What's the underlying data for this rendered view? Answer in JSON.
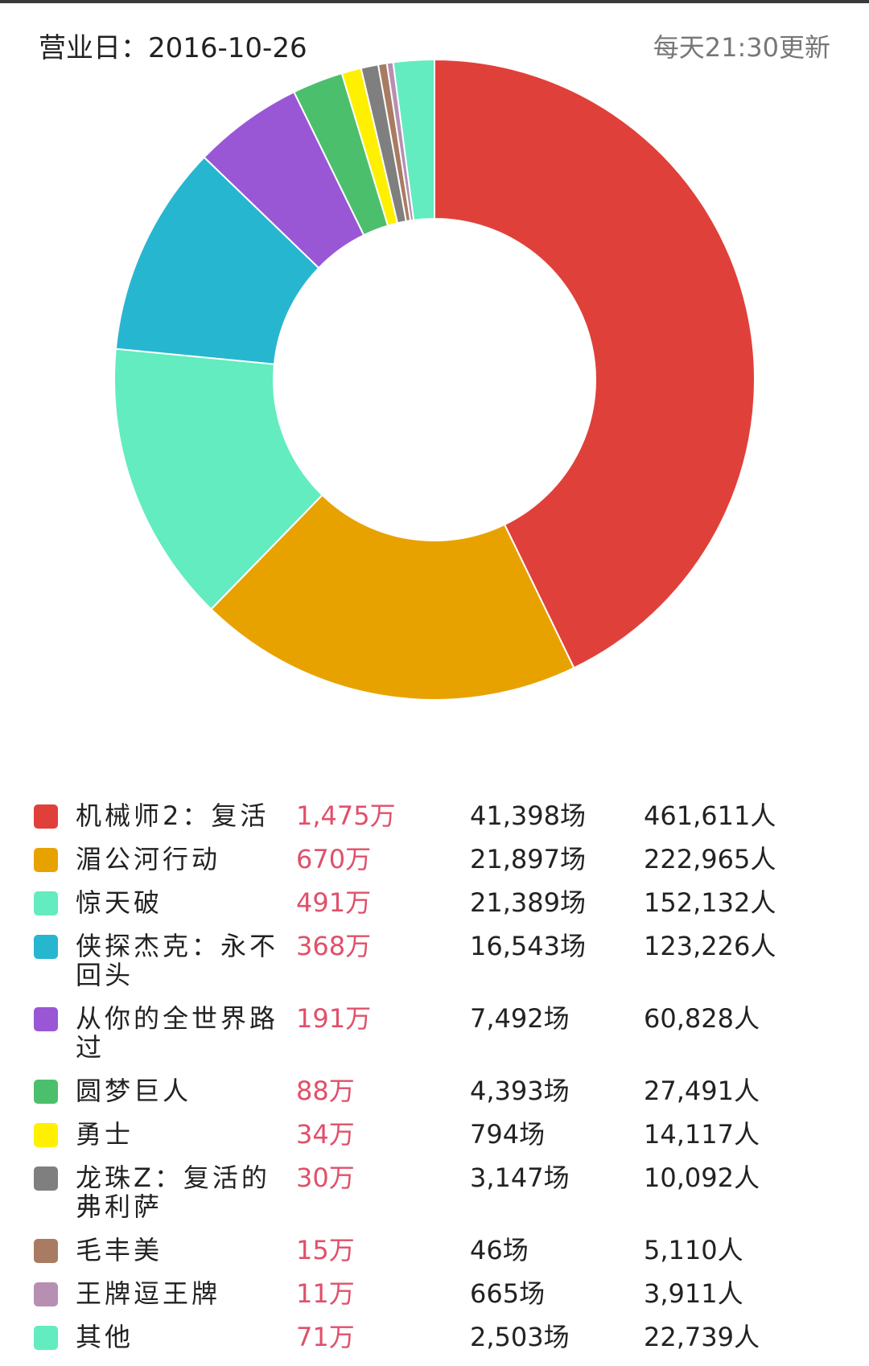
{
  "header": {
    "date_text": "营业日：2016-10-26",
    "update_text": "每天21:30更新"
  },
  "chart_data": {
    "type": "pie",
    "style": "donut",
    "unit": "万",
    "categories": [
      "机械师2：复活",
      "湄公河行动",
      "惊天破",
      "侠探杰克：永不回头",
      "从你的全世界路过",
      "圆梦巨人",
      "勇士",
      "龙珠Z：复活的弗利萨",
      "毛丰美",
      "王牌逗王牌",
      "其他"
    ],
    "values": [
      1475,
      670,
      491,
      368,
      191,
      88,
      34,
      30,
      15,
      11,
      71
    ],
    "colors": [
      "#e0403a",
      "#e8a200",
      "#62ecc0",
      "#27b6d0",
      "#9957d6",
      "#4cbf6c",
      "#fff000",
      "#7f7f7f",
      "#a87b62",
      "#b68fb2",
      "#62ecc0"
    ],
    "legend_position": "bottom"
  },
  "legend": [
    {
      "name": "机械师2：复活",
      "box": "1,475",
      "unit": "万",
      "screens": "41,398场",
      "people": "461,611人"
    },
    {
      "name": "湄公河行动",
      "box": "670",
      "unit": "万",
      "screens": "21,897场",
      "people": "222,965人"
    },
    {
      "name": "惊天破",
      "box": "491",
      "unit": "万",
      "screens": "21,389场",
      "people": "152,132人"
    },
    {
      "name": "侠探杰克：永不回头",
      "box": "368",
      "unit": "万",
      "screens": "16,543场",
      "people": "123,226人"
    },
    {
      "name": "从你的全世界路过",
      "box": "191",
      "unit": "万",
      "screens": "7,492场",
      "people": "60,828人"
    },
    {
      "name": "圆梦巨人",
      "box": "88",
      "unit": "万",
      "screens": "4,393场",
      "people": "27,491人"
    },
    {
      "name": "勇士",
      "box": "34",
      "unit": "万",
      "screens": "794场",
      "people": "14,117人"
    },
    {
      "name": "龙珠Z：复活的弗利萨",
      "box": "30",
      "unit": "万",
      "screens": "3,147场",
      "people": "10,092人"
    },
    {
      "name": "毛丰美",
      "box": "15",
      "unit": "万",
      "screens": "46场",
      "people": "5,110人"
    },
    {
      "name": "王牌逗王牌",
      "box": "11",
      "unit": "万",
      "screens": "665场",
      "people": "3,911人"
    },
    {
      "name": "其他",
      "box": "71",
      "unit": "万",
      "screens": "2,503场",
      "people": "22,739人"
    }
  ]
}
